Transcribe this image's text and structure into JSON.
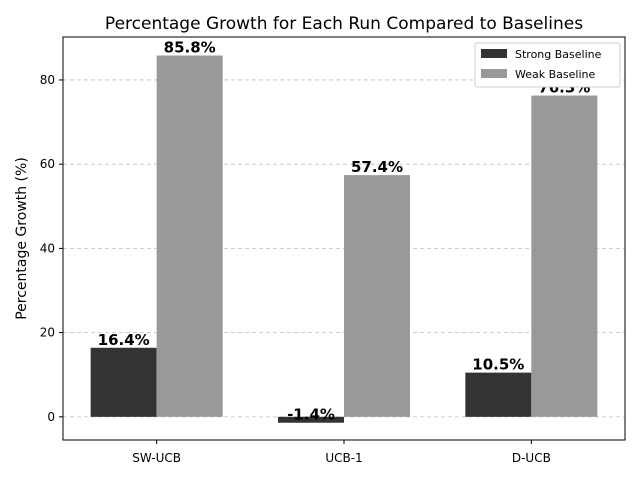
{
  "chart_data": {
    "type": "bar",
    "title": "Percentage Growth for Each Run Compared to Baselines",
    "xlabel": "",
    "ylabel": "Percentage Growth (%)",
    "categories": [
      "SW-UCB",
      "UCB-1",
      "D-UCB"
    ],
    "series": [
      {
        "name": "Strong Baseline",
        "values": [
          16.4,
          -1.4,
          10.5
        ],
        "labels": [
          "16.4%",
          "-1.4%",
          "10.5%"
        ],
        "color": "#333333"
      },
      {
        "name": "Weak Baseline",
        "values": [
          85.8,
          57.4,
          76.3
        ],
        "labels": [
          "85.8%",
          "57.4%",
          "76.3%"
        ],
        "color": "#999999"
      }
    ],
    "ylim": [
      -5.5,
      90.2
    ],
    "yticks": [
      0,
      20,
      40,
      60,
      80
    ],
    "ytick_labels": [
      "0",
      "20",
      "40",
      "60",
      "80"
    ],
    "grid": "y-dashed",
    "legend_position": "top-right"
  }
}
